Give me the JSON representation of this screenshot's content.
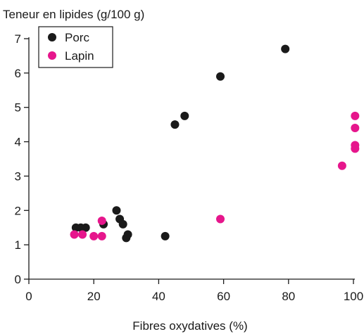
{
  "chart_data": {
    "type": "scatter",
    "title": "",
    "xlabel": "Fibres oxydatives (%)",
    "ylabel": "Teneur en lipides (g/100 g)",
    "xlim": [
      0,
      100
    ],
    "ylim": [
      0,
      7
    ],
    "xticks": [
      0,
      20,
      40,
      60,
      80,
      100
    ],
    "yticks": [
      0,
      1,
      2,
      3,
      4,
      5,
      6,
      7
    ],
    "grid": false,
    "legend_position": "top-left",
    "series": [
      {
        "name": "Porc",
        "color": "#1a1a1a",
        "points": [
          {
            "x": 14.5,
            "y": 1.5
          },
          {
            "x": 16.0,
            "y": 1.5
          },
          {
            "x": 17.5,
            "y": 1.5
          },
          {
            "x": 23.0,
            "y": 1.6
          },
          {
            "x": 27.0,
            "y": 2.0
          },
          {
            "x": 28.0,
            "y": 1.75
          },
          {
            "x": 29.0,
            "y": 1.6
          },
          {
            "x": 30.0,
            "y": 1.2
          },
          {
            "x": 30.5,
            "y": 1.3
          },
          {
            "x": 42.0,
            "y": 1.25
          },
          {
            "x": 45.0,
            "y": 4.5
          },
          {
            "x": 48.0,
            "y": 4.75
          },
          {
            "x": 59.0,
            "y": 5.9
          },
          {
            "x": 79.0,
            "y": 6.7
          }
        ]
      },
      {
        "name": "Lapin",
        "color": "#e6168c",
        "points": [
          {
            "x": 14.0,
            "y": 1.3
          },
          {
            "x": 16.5,
            "y": 1.3
          },
          {
            "x": 20.0,
            "y": 1.25
          },
          {
            "x": 22.5,
            "y": 1.25
          },
          {
            "x": 22.5,
            "y": 1.7
          },
          {
            "x": 59.0,
            "y": 1.75
          },
          {
            "x": 96.5,
            "y": 3.3
          },
          {
            "x": 100.5,
            "y": 3.8
          },
          {
            "x": 100.5,
            "y": 3.9
          },
          {
            "x": 100.5,
            "y": 4.4
          },
          {
            "x": 100.5,
            "y": 4.75
          }
        ]
      }
    ]
  }
}
